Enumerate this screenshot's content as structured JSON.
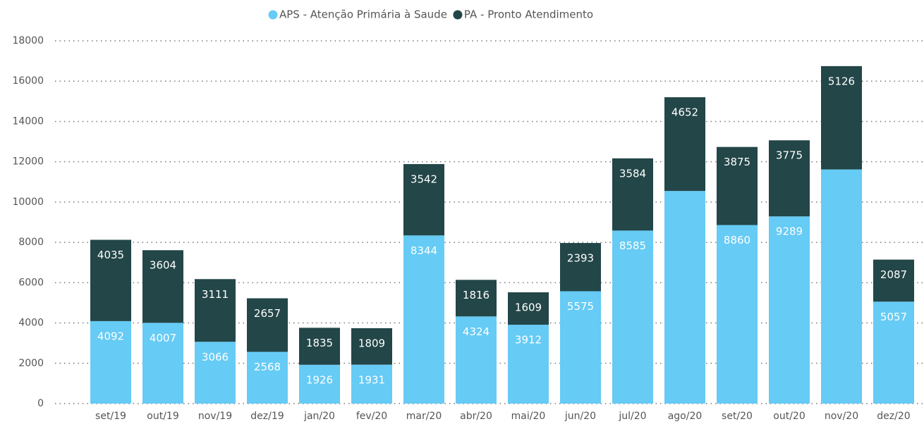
{
  "chart_data": {
    "type": "stacked_bar",
    "categories": [
      "set/19",
      "out/19",
      "nov/19",
      "dez/19",
      "jan/20",
      "fev/20",
      "mar/20",
      "abr/20",
      "mai/20",
      "jun/20",
      "jul/20",
      "ago/20",
      "set/20",
      "out/20",
      "nov/20",
      "dez/20"
    ],
    "series": [
      {
        "name": "APS - Atenção Primária à Saude",
        "color": "#66cbf5",
        "values": [
          4092,
          4007,
          3066,
          2568,
          1926,
          1931,
          8344,
          4324,
          3912,
          5575,
          8585,
          10550,
          8860,
          9289,
          11620,
          5057
        ],
        "value_labels": [
          "4092",
          "4007",
          "3066",
          "2568",
          "1926",
          "1931",
          "8344",
          "4324",
          "3912",
          "5575",
          "8585",
          null,
          "8860",
          "9289",
          null,
          "5057"
        ]
      },
      {
        "name": "PA - Pronto Atendimento",
        "color": "#234648",
        "values": [
          4035,
          3604,
          3111,
          2657,
          1835,
          1809,
          3542,
          1816,
          1609,
          2393,
          3584,
          4652,
          3875,
          3775,
          5126,
          2087
        ],
        "value_labels": [
          "4035",
          "3604",
          "3111",
          "2657",
          "1835",
          "1809",
          "3542",
          "1816",
          "1609",
          "2393",
          "3584",
          "4652",
          "3875",
          "3775",
          "5126",
          "2087"
        ]
      }
    ],
    "ylim": [
      0,
      18000
    ],
    "yticks": [
      0,
      2000,
      4000,
      6000,
      8000,
      10000,
      12000,
      14000,
      16000,
      18000
    ],
    "grid": true,
    "legend": "top"
  }
}
